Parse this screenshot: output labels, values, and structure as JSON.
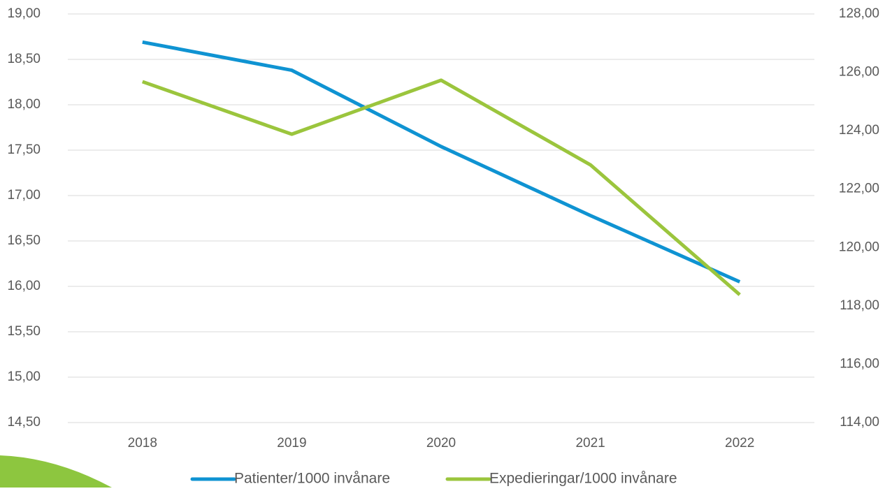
{
  "chart_data": {
    "type": "line",
    "categories": [
      "2018",
      "2019",
      "2020",
      "2021",
      "2022"
    ],
    "series": [
      {
        "name": "Patienter/1000 invånare",
        "color": "#0f93d2",
        "values": [
          18.69,
          18.38,
          17.54,
          16.78,
          16.05
        ]
      },
      {
        "name": "Expedieringar/1000 invånare",
        "color": "#9bc53d",
        "axis": "y2",
        "values": [
          125.68,
          123.88,
          125.73,
          122.83,
          118.38
        ]
      }
    ],
    "ylim": [
      14.5,
      19
    ],
    "yticks": [
      {
        "value": 14.5,
        "label": "14,50"
      },
      {
        "value": 15,
        "label": "15,00"
      },
      {
        "value": 15.5,
        "label": "15,50"
      },
      {
        "value": 16,
        "label": "16,00"
      },
      {
        "value": 16.5,
        "label": "16,50"
      },
      {
        "value": 17,
        "label": "17,00"
      },
      {
        "value": 17.5,
        "label": "17,50"
      },
      {
        "value": 18,
        "label": "18,00"
      },
      {
        "value": 18.5,
        "label": "18,50"
      },
      {
        "value": 19,
        "label": "19,00"
      }
    ],
    "y2lim": [
      114,
      128
    ],
    "y2ticks": [
      {
        "value": 114,
        "label": "114,00"
      },
      {
        "value": 116,
        "label": "116,00"
      },
      {
        "value": 118,
        "label": "118,00"
      },
      {
        "value": 120,
        "label": "120,00"
      },
      {
        "value": 122,
        "label": "122,00"
      },
      {
        "value": 124,
        "label": "124,00"
      },
      {
        "value": 126,
        "label": "126,00"
      },
      {
        "value": 128,
        "label": "128,00"
      }
    ],
    "grid": true,
    "legend": "bottom"
  }
}
